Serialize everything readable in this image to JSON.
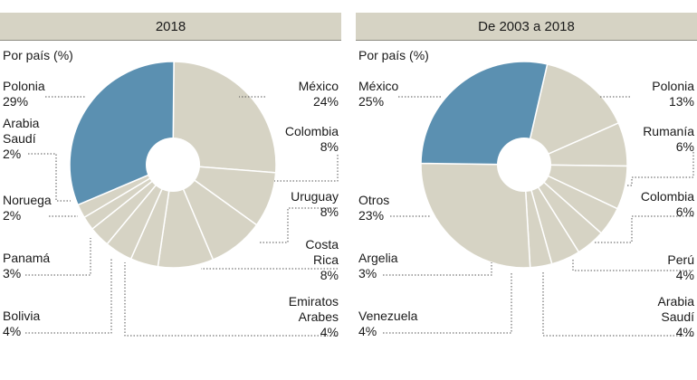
{
  "chart_data": [
    {
      "type": "pie",
      "title": "2018",
      "subtitle": "Por país (%)",
      "slices": [
        {
          "label": "México",
          "value": 24,
          "value_label": "24%"
        },
        {
          "label": "Colombia",
          "value": 8,
          "value_label": "8%"
        },
        {
          "label": "Uruguay",
          "value": 8,
          "value_label": "8%"
        },
        {
          "label": "Costa Rica",
          "value": 8,
          "value_label": "8%"
        },
        {
          "label": "Emiratos Arabes",
          "value": 4,
          "value_label": "4%"
        },
        {
          "label": "Bolivia",
          "value": 4,
          "value_label": "4%"
        },
        {
          "label": "Panamá",
          "value": 3,
          "value_label": "3%"
        },
        {
          "label": "Noruega",
          "value": 2,
          "value_label": "2%"
        },
        {
          "label": "Arabia Saudí",
          "value": 2,
          "value_label": "2%"
        },
        {
          "label": "Polonia",
          "value": 29,
          "value_label": "29%"
        }
      ],
      "highlight": "Polonia"
    },
    {
      "type": "pie",
      "title": "De 2003 a 2018",
      "subtitle": "Por país (%)",
      "slices": [
        {
          "label": "Polonia",
          "value": 13,
          "value_label": "13%"
        },
        {
          "label": "Rumanía",
          "value": 6,
          "value_label": "6%"
        },
        {
          "label": "Colombia",
          "value": 6,
          "value_label": "6%"
        },
        {
          "label": "Perú",
          "value": 4,
          "value_label": "4%"
        },
        {
          "label": "Arabia Saudí",
          "value": 4,
          "value_label": "4%"
        },
        {
          "label": "Venezuela",
          "value": 4,
          "value_label": "4%"
        },
        {
          "label": "Argelia",
          "value": 3,
          "value_label": "3%"
        },
        {
          "label": "Otros",
          "value": 23,
          "value_label": "23%"
        },
        {
          "label": "México",
          "value": 25,
          "value_label": "25%"
        }
      ],
      "highlight": "México"
    }
  ],
  "colors": {
    "highlight": "#5b90b1",
    "base": "#d6d3c4",
    "header_bg": "#d6d3c4",
    "slice_border": "#ffffff",
    "leader": "#555555"
  },
  "labels": {
    "left": {
      "polonia_name": "Polonia",
      "polonia_value": "29%",
      "mexico_name": "México",
      "mexico_value": "24%",
      "arabia_name_1": "Arabia",
      "arabia_name_2": "Saudí",
      "arabia_value": "2%",
      "colombia_name": "Colombia",
      "colombia_value": "8%",
      "uruguay_name": "Uruguay",
      "uruguay_value": "8%",
      "noruega_name": "Noruega",
      "noruega_value": "2%",
      "costarica_name_1": "Costa",
      "costarica_name_2": "Rica",
      "costarica_value": "8%",
      "panama_name": "Panamá",
      "panama_value": "3%",
      "emiratos_name_1": "Emiratos",
      "emiratos_name_2": "Arabes",
      "emiratos_value": "4%",
      "bolivia_name": "Bolivia",
      "bolivia_value": "4%"
    },
    "right": {
      "mexico_name": "México",
      "mexico_value": "25%",
      "polonia_name": "Polonia",
      "polonia_value": "13%",
      "rumania_name": "Rumanía",
      "rumania_value": "6%",
      "otros_name": "Otros",
      "otros_value": "23%",
      "colombia_name": "Colombia",
      "colombia_value": "6%",
      "argelia_name": "Argelia",
      "argelia_value": "3%",
      "peru_name": "Perú",
      "peru_value": "4%",
      "venezuela_name": "Venezuela",
      "venezuela_value": "4%",
      "arabia_name_1": "Arabia",
      "arabia_name_2": "Saudí",
      "arabia_value": "4%"
    }
  }
}
